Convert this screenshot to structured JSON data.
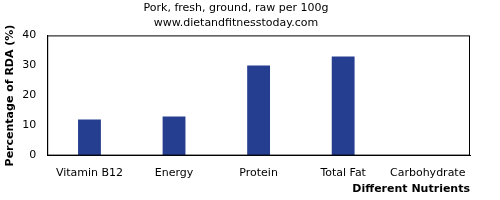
{
  "chart_data": {
    "type": "bar",
    "title": "Pork, fresh, ground, raw per 100g",
    "subtitle": "www.dietandfitnesstoday.com",
    "x_label": "Different Nutrients",
    "y_label": "Percentage of RDA (%)",
    "categories": [
      "Vitamin B12",
      "Energy",
      "Protein",
      "Total Fat",
      "Carbohydrate"
    ],
    "values": [
      12,
      13,
      30,
      33,
      0
    ],
    "color": "#253e8f",
    "ylim": [
      0,
      40
    ],
    "yticks": [
      0,
      10,
      20,
      30,
      40
    ],
    "grid": false
  }
}
